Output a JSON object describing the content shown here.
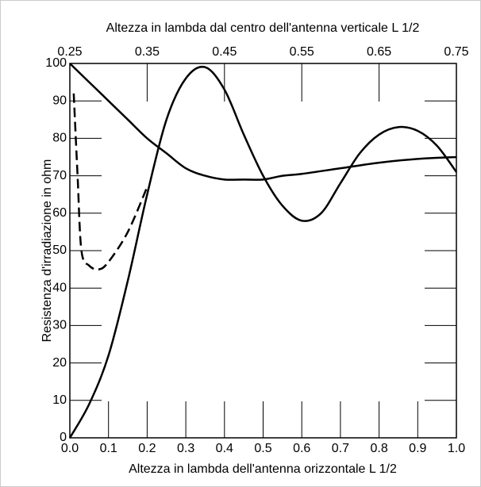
{
  "chart_data": {
    "type": "line",
    "x2label": "Altezza in lambda dal centro dell'antenna verticale L 1/2",
    "xlabel": "Altezza in lambda dell'antenna orizzontale L 1/2",
    "ylabel": "Resistenza d'irradiazione in ohm",
    "xlim": [
      0,
      1
    ],
    "xticks": [
      {
        "value": 0,
        "label": "0.0"
      },
      0.1,
      0.2,
      0.3,
      0.4,
      0.5,
      0.6,
      0.7,
      0.8,
      0.9,
      {
        "value": 1,
        "label": "1.0"
      }
    ],
    "x2lim": [
      0.25,
      0.75
    ],
    "x2ticks": [
      0.25,
      0.35,
      0.45,
      0.55,
      0.65,
      0.75
    ],
    "ylim": [
      0,
      100
    ],
    "yticks": [
      0,
      10,
      20,
      30,
      40,
      50,
      60,
      70,
      80,
      90,
      100
    ],
    "series": [
      {
        "color": "#000000",
        "linestyle": "solid",
        "x": [
          0,
          0.05,
          0.1,
          0.15,
          0.2,
          0.25,
          0.3,
          0.35,
          0.4,
          0.45,
          0.5,
          0.55,
          0.6,
          0.65,
          0.7,
          0.75,
          0.8,
          0.85,
          0.9,
          0.95,
          1.0
        ],
        "values": [
          0,
          9,
          22,
          42,
          65,
          85,
          96,
          99,
          93,
          81,
          70,
          62,
          58,
          60,
          68,
          76,
          81,
          83,
          82,
          78,
          71
        ]
      },
      {
        "color": "#000000",
        "linestyle": "solid",
        "axis": "x2",
        "x": [
          0.25,
          0.275,
          0.3,
          0.325,
          0.35,
          0.375,
          0.4,
          0.425,
          0.45,
          0.475,
          0.5,
          0.525,
          0.55,
          0.6,
          0.65,
          0.7,
          0.75
        ],
        "values": [
          100,
          95,
          90,
          85,
          80,
          76,
          72,
          70,
          69,
          69,
          69,
          70,
          70.5,
          72,
          73.5,
          74.5,
          75
        ]
      },
      {
        "color": "#000000",
        "linestyle": "dashed",
        "x": [
          0.01,
          0.02,
          0.03,
          0.05,
          0.075,
          0.1,
          0.15,
          0.2
        ],
        "values": [
          92,
          70,
          50,
          46,
          45,
          47,
          55,
          67
        ]
      }
    ]
  }
}
